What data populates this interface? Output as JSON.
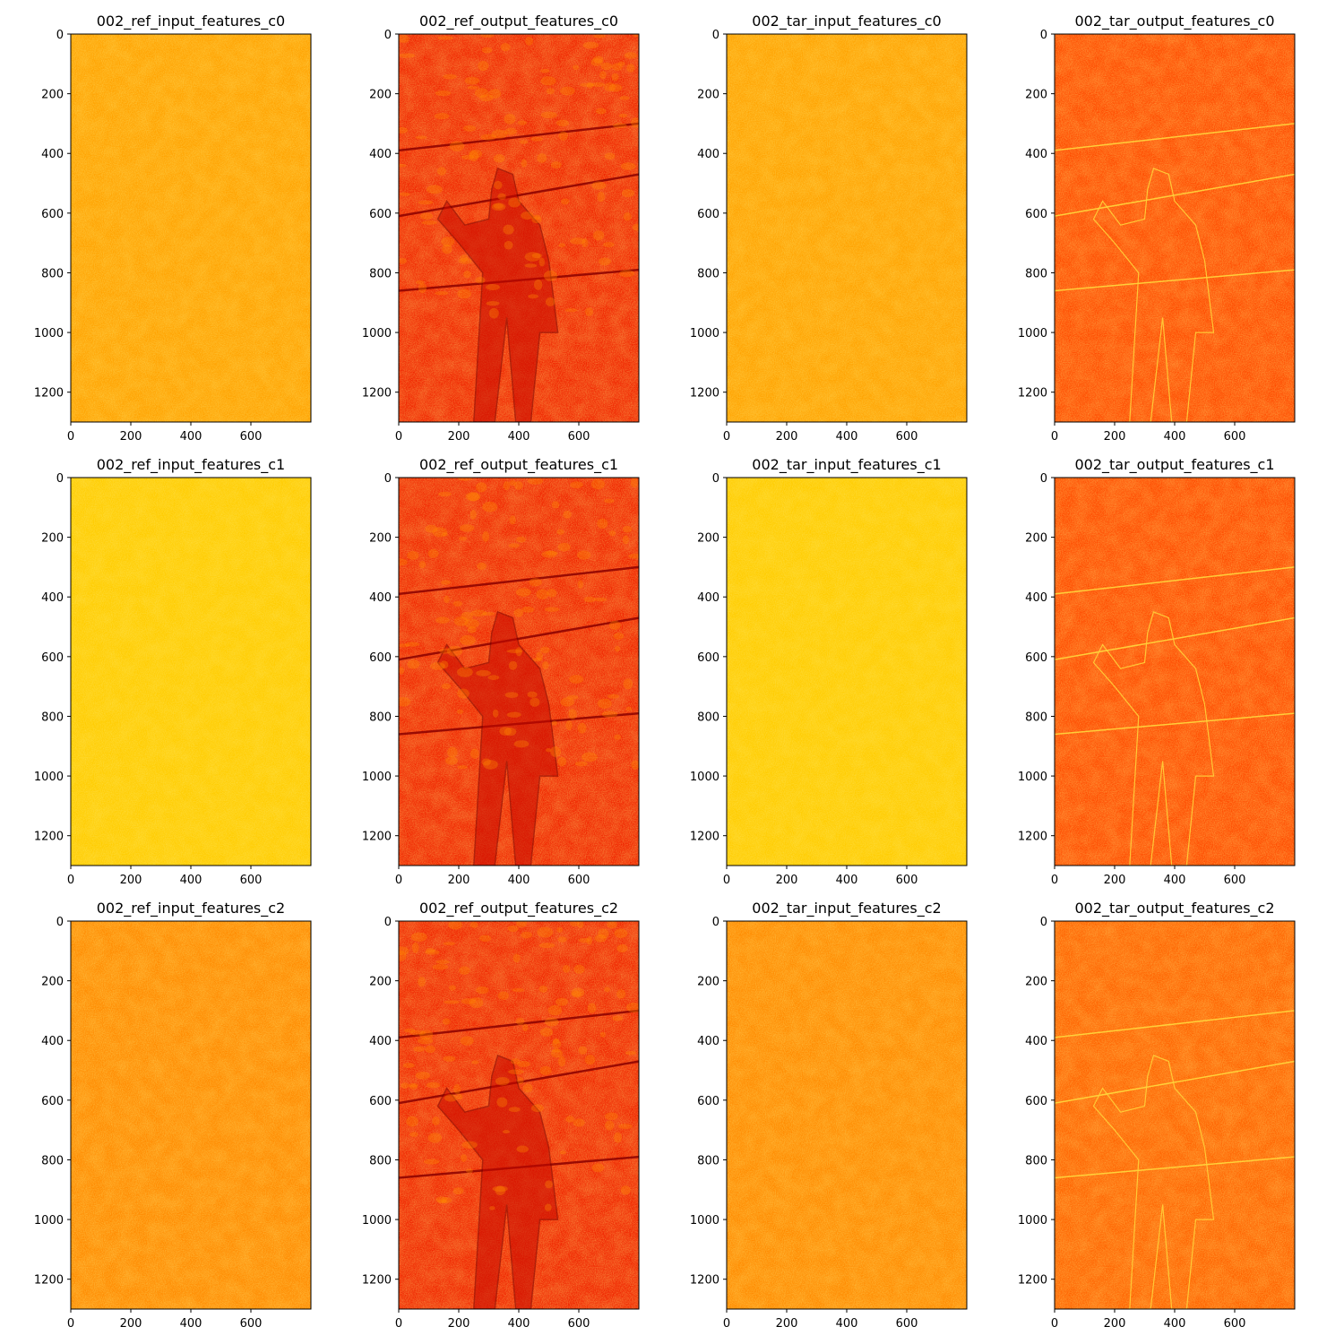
{
  "figure": {
    "colormap": "hot",
    "colormap_stops": [
      "#b40000",
      "#e01a00",
      "#ff3a00",
      "#ff6a00",
      "#ff9a00",
      "#ffc400",
      "#ffe000",
      "#fff36b"
    ]
  },
  "chart_data": [
    {
      "type": "heatmap",
      "title": "002_ref_input_features_c0",
      "xlim": [
        0,
        800
      ],
      "ylim": [
        1300,
        0
      ],
      "xticks": [
        0,
        200,
        400,
        600
      ],
      "yticks": [
        0,
        200,
        400,
        600,
        800,
        1000,
        1200
      ],
      "dominant_tone": "orange-yellow noise"
    },
    {
      "type": "heatmap",
      "title": "002_ref_output_features_c0",
      "xlim": [
        0,
        800
      ],
      "ylim": [
        1300,
        0
      ],
      "xticks": [
        0,
        200,
        400,
        600
      ],
      "yticks": [
        0,
        200,
        400,
        600,
        800,
        1000,
        1200
      ],
      "dominant_tone": "red with person silhouette"
    },
    {
      "type": "heatmap",
      "title": "002_tar_input_features_c0",
      "xlim": [
        0,
        800
      ],
      "ylim": [
        1300,
        0
      ],
      "xticks": [
        0,
        200,
        400,
        600
      ],
      "yticks": [
        0,
        200,
        400,
        600,
        800,
        1000,
        1200
      ],
      "dominant_tone": "orange-yellow noise"
    },
    {
      "type": "heatmap",
      "title": "002_tar_output_features_c0",
      "xlim": [
        0,
        800
      ],
      "ylim": [
        1300,
        0
      ],
      "xticks": [
        0,
        200,
        400,
        600
      ],
      "yticks": [
        0,
        200,
        400,
        600,
        800,
        1000,
        1200
      ],
      "dominant_tone": "orange-red with person outline"
    },
    {
      "type": "heatmap",
      "title": "002_ref_input_features_c1",
      "xlim": [
        0,
        800
      ],
      "ylim": [
        1300,
        0
      ],
      "xticks": [
        0,
        200,
        400,
        600
      ],
      "yticks": [
        0,
        200,
        400,
        600,
        800,
        1000,
        1200
      ],
      "dominant_tone": "yellow noise"
    },
    {
      "type": "heatmap",
      "title": "002_ref_output_features_c1",
      "xlim": [
        0,
        800
      ],
      "ylim": [
        1300,
        0
      ],
      "xticks": [
        0,
        200,
        400,
        600
      ],
      "yticks": [
        0,
        200,
        400,
        600,
        800,
        1000,
        1200
      ],
      "dominant_tone": "red with person silhouette"
    },
    {
      "type": "heatmap",
      "title": "002_tar_input_features_c1",
      "xlim": [
        0,
        800
      ],
      "ylim": [
        1300,
        0
      ],
      "xticks": [
        0,
        200,
        400,
        600
      ],
      "yticks": [
        0,
        200,
        400,
        600,
        800,
        1000,
        1200
      ],
      "dominant_tone": "yellow noise"
    },
    {
      "type": "heatmap",
      "title": "002_tar_output_features_c1",
      "xlim": [
        0,
        800
      ],
      "ylim": [
        1300,
        0
      ],
      "xticks": [
        0,
        200,
        400,
        600
      ],
      "yticks": [
        0,
        200,
        400,
        600,
        800,
        1000,
        1200
      ],
      "dominant_tone": "orange-red with person outline"
    },
    {
      "type": "heatmap",
      "title": "002_ref_input_features_c2",
      "xlim": [
        0,
        800
      ],
      "ylim": [
        1300,
        0
      ],
      "xticks": [
        0,
        200,
        400,
        600
      ],
      "yticks": [
        0,
        200,
        400,
        600,
        800,
        1000,
        1200
      ],
      "dominant_tone": "orange noise"
    },
    {
      "type": "heatmap",
      "title": "002_ref_output_features_c2",
      "xlim": [
        0,
        800
      ],
      "ylim": [
        1300,
        0
      ],
      "xticks": [
        0,
        200,
        400,
        600
      ],
      "yticks": [
        0,
        200,
        400,
        600,
        800,
        1000,
        1200
      ],
      "dominant_tone": "red with person silhouette"
    },
    {
      "type": "heatmap",
      "title": "002_tar_input_features_c2",
      "xlim": [
        0,
        800
      ],
      "ylim": [
        1300,
        0
      ],
      "xticks": [
        0,
        200,
        400,
        600
      ],
      "yticks": [
        0,
        200,
        400,
        600,
        800,
        1000,
        1200
      ],
      "dominant_tone": "orange noise"
    },
    {
      "type": "heatmap",
      "title": "002_tar_output_features_c2",
      "xlim": [
        0,
        800
      ],
      "ylim": [
        1300,
        0
      ],
      "xticks": [
        0,
        200,
        400,
        600
      ],
      "yticks": [
        0,
        200,
        400,
        600,
        800,
        1000,
        1200
      ],
      "dominant_tone": "orange with person outline"
    }
  ]
}
